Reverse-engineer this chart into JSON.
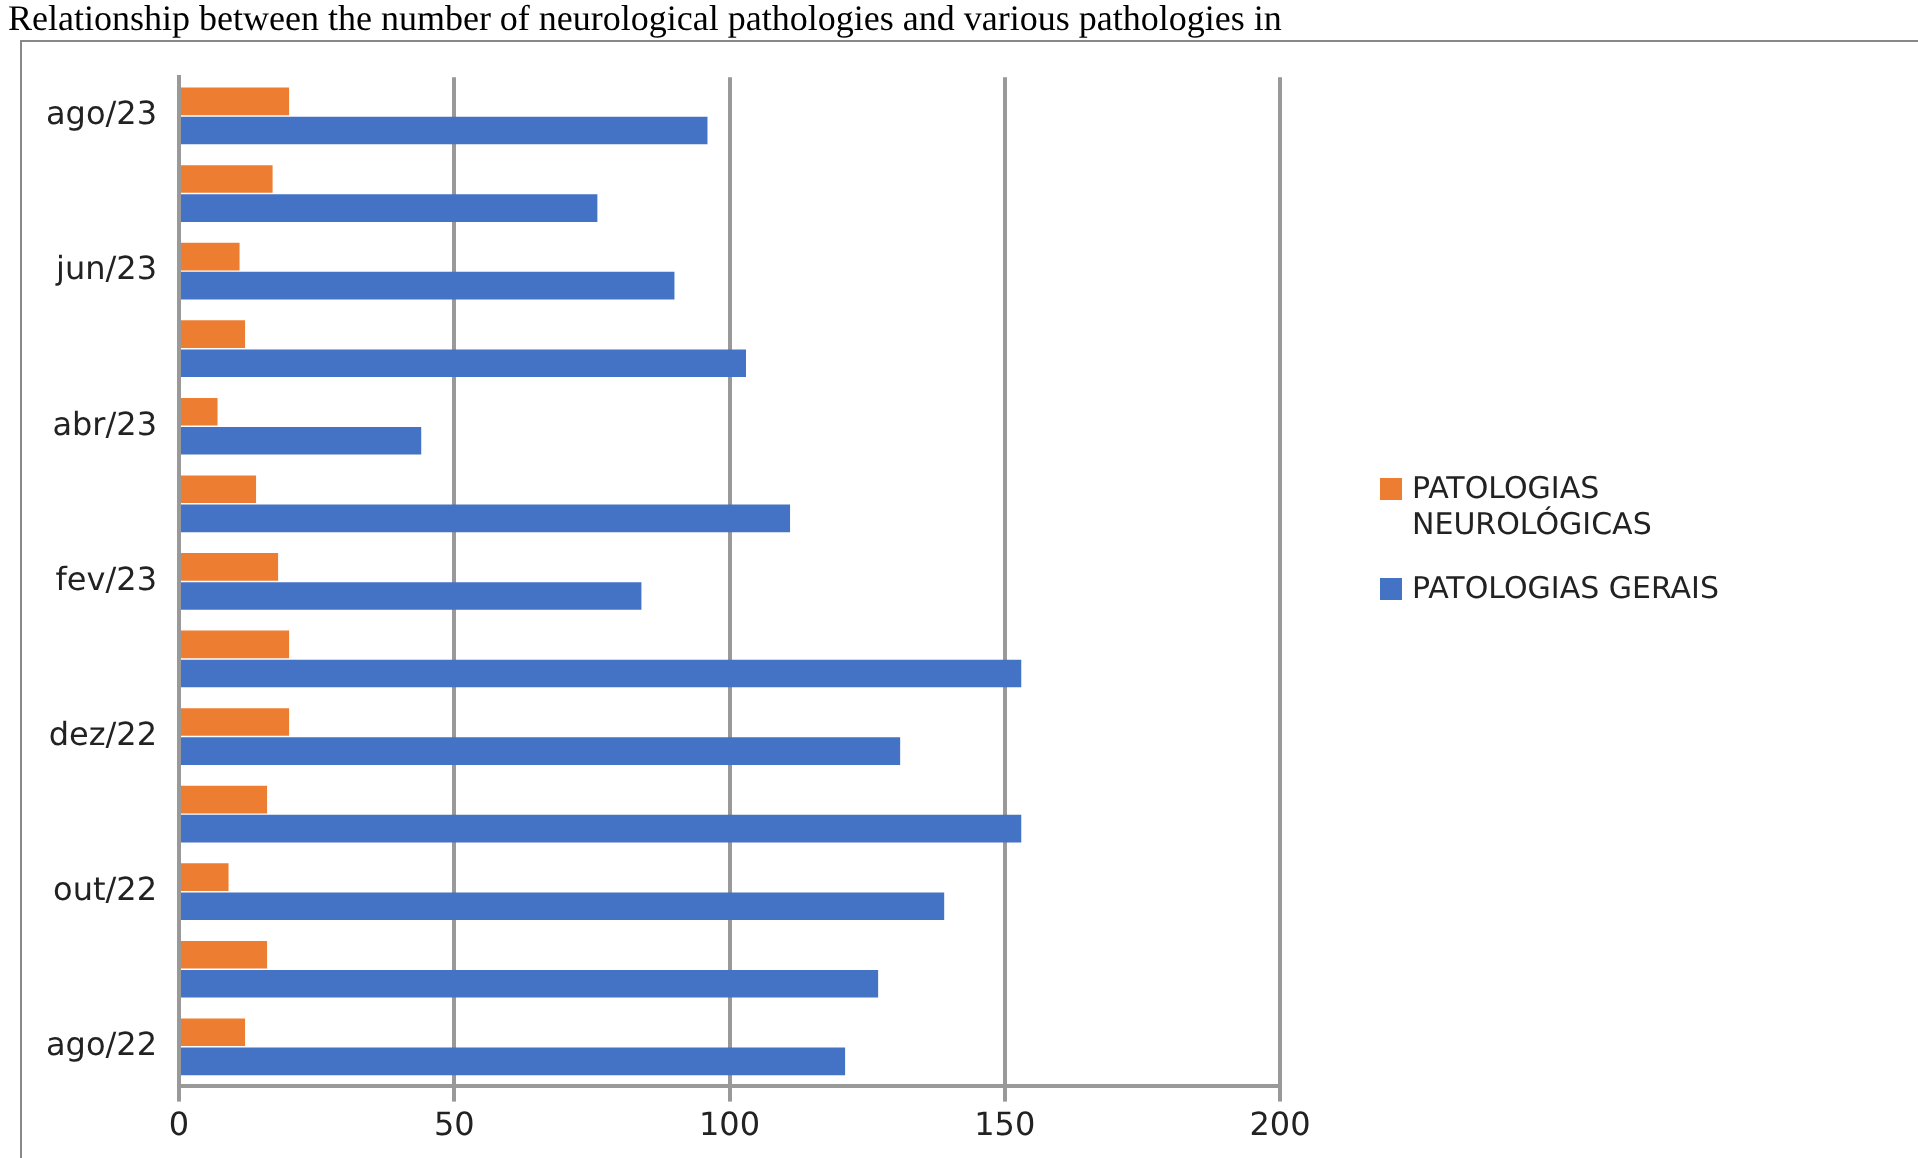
{
  "chart_data": {
    "type": "bar",
    "orientation": "horizontal",
    "title": "Relationship between the number of neurological pathologies and various pathologies in",
    "categories": [
      "ago/23",
      null,
      "jun/23",
      null,
      "abr/23",
      null,
      "fev/23",
      null,
      "dez/22",
      null,
      "out/22",
      null,
      "ago/22"
    ],
    "series": [
      {
        "name": "PATOLOGIAS NEUROLÓGICAS",
        "color": "#ed7d31",
        "values": [
          20,
          17,
          11,
          12,
          7,
          14,
          18,
          20,
          20,
          16,
          9,
          16,
          12
        ]
      },
      {
        "name": "PATOLOGIAS GERAIS",
        "color": "#4472c4",
        "values": [
          96,
          76,
          90,
          103,
          44,
          111,
          84,
          153,
          131,
          153,
          139,
          127,
          121
        ]
      }
    ],
    "xlim": [
      0,
      200
    ],
    "xticks": [
      0,
      50,
      100,
      150,
      200
    ],
    "grid": "x",
    "legend": "right"
  }
}
